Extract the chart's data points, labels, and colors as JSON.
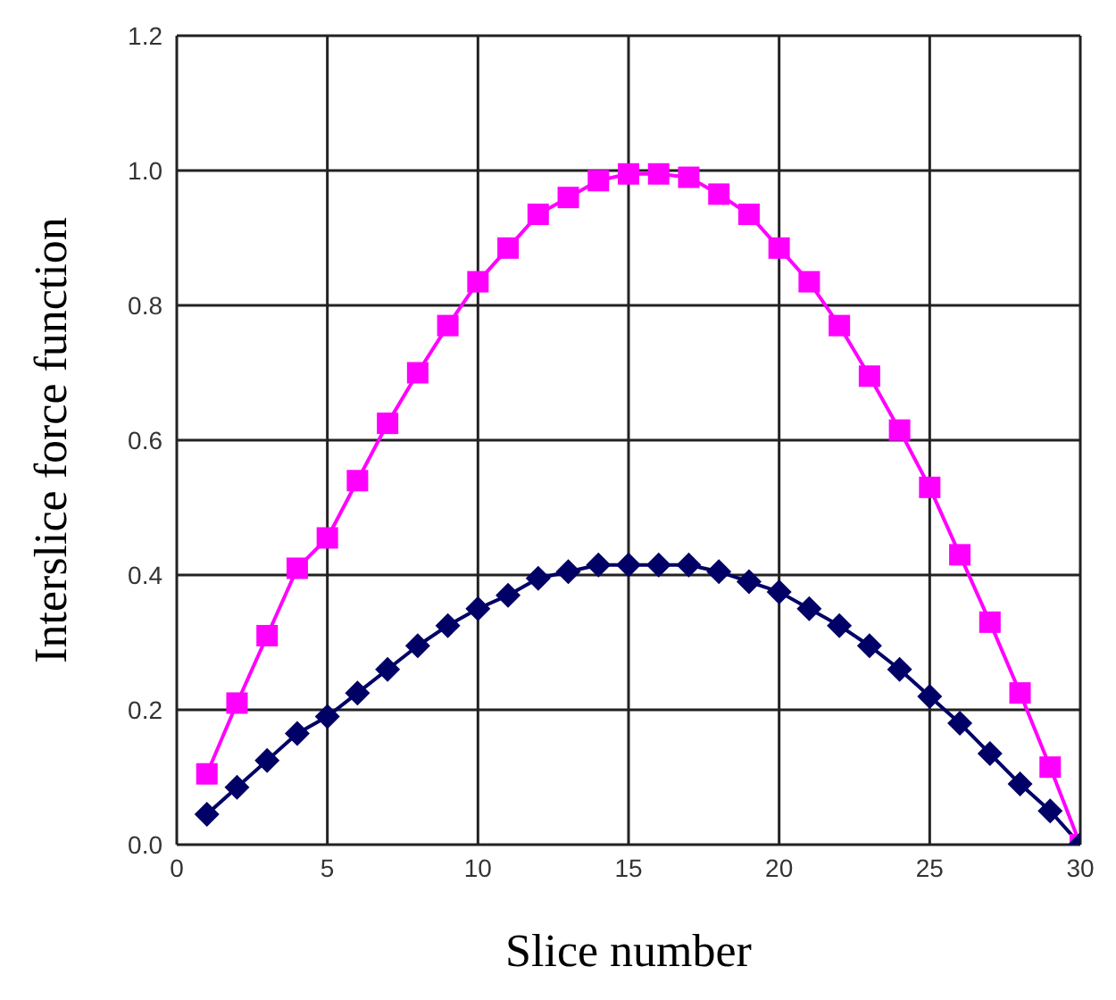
{
  "chart_data": {
    "type": "line",
    "xlabel": "Slice number",
    "ylabel": "Interslice force function",
    "x": [
      1,
      2,
      3,
      4,
      5,
      6,
      7,
      8,
      9,
      10,
      11,
      12,
      13,
      14,
      15,
      16,
      17,
      18,
      19,
      20,
      21,
      22,
      23,
      24,
      25,
      26,
      27,
      28,
      29,
      30
    ],
    "series": [
      {
        "color": "#ff00ff",
        "marker": "square",
        "values": [
          0.105,
          0.21,
          0.31,
          0.41,
          0.455,
          0.54,
          0.625,
          0.7,
          0.77,
          0.835,
          0.885,
          0.935,
          0.96,
          0.985,
          0.995,
          0.995,
          0.99,
          0.965,
          0.935,
          0.885,
          0.835,
          0.77,
          0.695,
          0.615,
          0.53,
          0.43,
          0.33,
          0.225,
          0.115,
          0
        ]
      },
      {
        "color": "#000066",
        "marker": "diamond",
        "values": [
          0.045,
          0.085,
          0.125,
          0.165,
          0.19,
          0.225,
          0.26,
          0.295,
          0.325,
          0.35,
          0.37,
          0.395,
          0.405,
          0.415,
          0.415,
          0.415,
          0.415,
          0.405,
          0.39,
          0.375,
          0.35,
          0.325,
          0.295,
          0.26,
          0.22,
          0.18,
          0.135,
          0.09,
          0.05,
          0
        ]
      }
    ],
    "xlim": [
      0,
      30
    ],
    "xticks": [
      0,
      5,
      10,
      15,
      20,
      25,
      30
    ],
    "ylim": [
      0,
      1.2
    ],
    "yticks": [
      {
        "value": 0,
        "label": "0.0"
      },
      {
        "value": 0.2,
        "label": "0.2"
      },
      {
        "value": 0.4,
        "label": "0.4"
      },
      {
        "value": 0.6,
        "label": "0.6"
      },
      {
        "value": 0.8,
        "label": "0.8"
      },
      {
        "value": 1,
        "label": "1.0"
      },
      {
        "value": 1.2,
        "label": "1.2"
      }
    ],
    "grid": true,
    "line_style": "solid"
  }
}
